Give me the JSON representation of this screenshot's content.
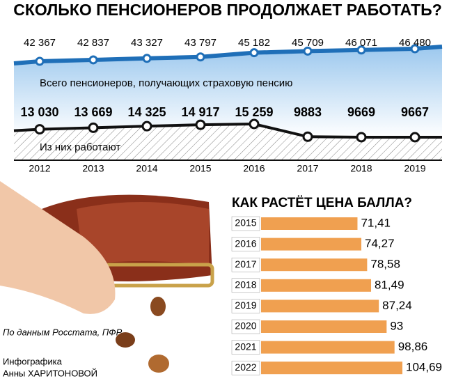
{
  "title": "СКОЛЬКО ПЕНСИОНЕРОВ ПРОДОЛЖАЕТ РАБОТАТЬ?",
  "chart_data": [
    {
      "type": "line",
      "categories": [
        "2012",
        "2013",
        "2014",
        "2015",
        "2016",
        "2017",
        "2018",
        "2019"
      ],
      "series": [
        {
          "name": "Всего пенсионеров, получающих страховую пенсию",
          "color": "#1f6fb8",
          "values": [
            42367,
            42837,
            43327,
            43797,
            45182,
            45709,
            46071,
            46480
          ],
          "value_labels": [
            "42 367",
            "42 837",
            "43 327",
            "43 797",
            "45 182",
            "45 709",
            "46 071",
            "46 480"
          ]
        },
        {
          "name": "Из них работают",
          "color": "#111111",
          "values": [
            13030,
            13669,
            14325,
            14917,
            15259,
            9883,
            9669,
            9667
          ],
          "value_labels": [
            "13 030",
            "13 669",
            "14 325",
            "14 917",
            "15 259",
            "9883",
            "9669",
            "9667"
          ]
        }
      ]
    },
    {
      "type": "hbar",
      "title": "КАК РАСТЁТ ЦЕНА БАЛЛА?",
      "color": "#f0a050",
      "categories": [
        "2015",
        "2016",
        "2017",
        "2018",
        "2019",
        "2020",
        "2021",
        "2022"
      ],
      "values": [
        71.41,
        74.27,
        78.58,
        81.49,
        87.24,
        93,
        98.86,
        104.69
      ],
      "value_labels": [
        "71,41",
        "74,27",
        "78,58",
        "81,49",
        "87,24",
        "93",
        "98,86",
        "104,69"
      ]
    }
  ],
  "source": "По данным Росстата, ПФР",
  "credit_line1": "Инфографика",
  "credit_line2": "Анны ХАРИТОНОВОЙ"
}
